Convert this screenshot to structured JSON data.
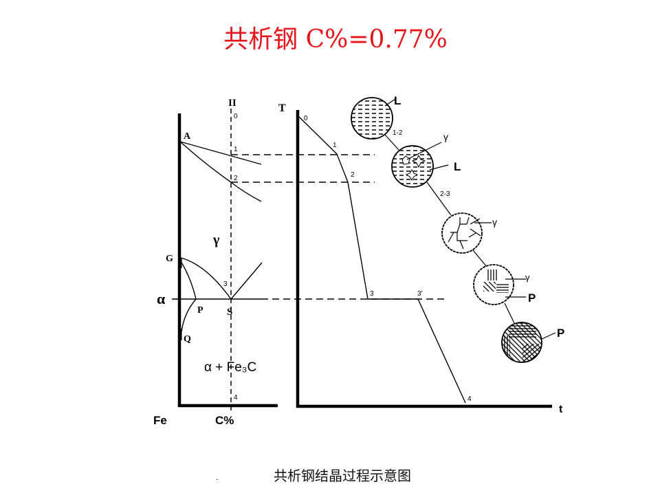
{
  "title": "共析钢 C%=0.77%",
  "caption": "共析钢结晶过程示意图",
  "caption_dot": ".",
  "phase_diagram": {
    "alloy_line_label": "II",
    "points": {
      "A": "A",
      "G": "G",
      "P": "P",
      "S": "S",
      "Q": "Q"
    },
    "alloy_point_labels": [
      "0",
      "1",
      "2",
      "3",
      "4"
    ],
    "phase_gamma": "γ",
    "phase_alpha": "α",
    "phase_alpha_fe3c": "α + Fe₃C",
    "x_axis_origin": "Fe",
    "x_axis_label": "C%"
  },
  "cooling_curve": {
    "y_axis_label": "T",
    "x_axis_label": "t",
    "point_labels": [
      "0",
      "1",
      "2",
      "3",
      "3'",
      "4"
    ]
  },
  "microstructures": {
    "labels": {
      "L1": "L",
      "stage12": "1-2",
      "gamma2": "γ",
      "L2": "L",
      "stage23": "2-3",
      "gamma3": "γ",
      "gamma4": "γ",
      "P4": "P",
      "P5": "P"
    }
  },
  "colors": {
    "title": "#e8141b",
    "lines": "#000000"
  }
}
